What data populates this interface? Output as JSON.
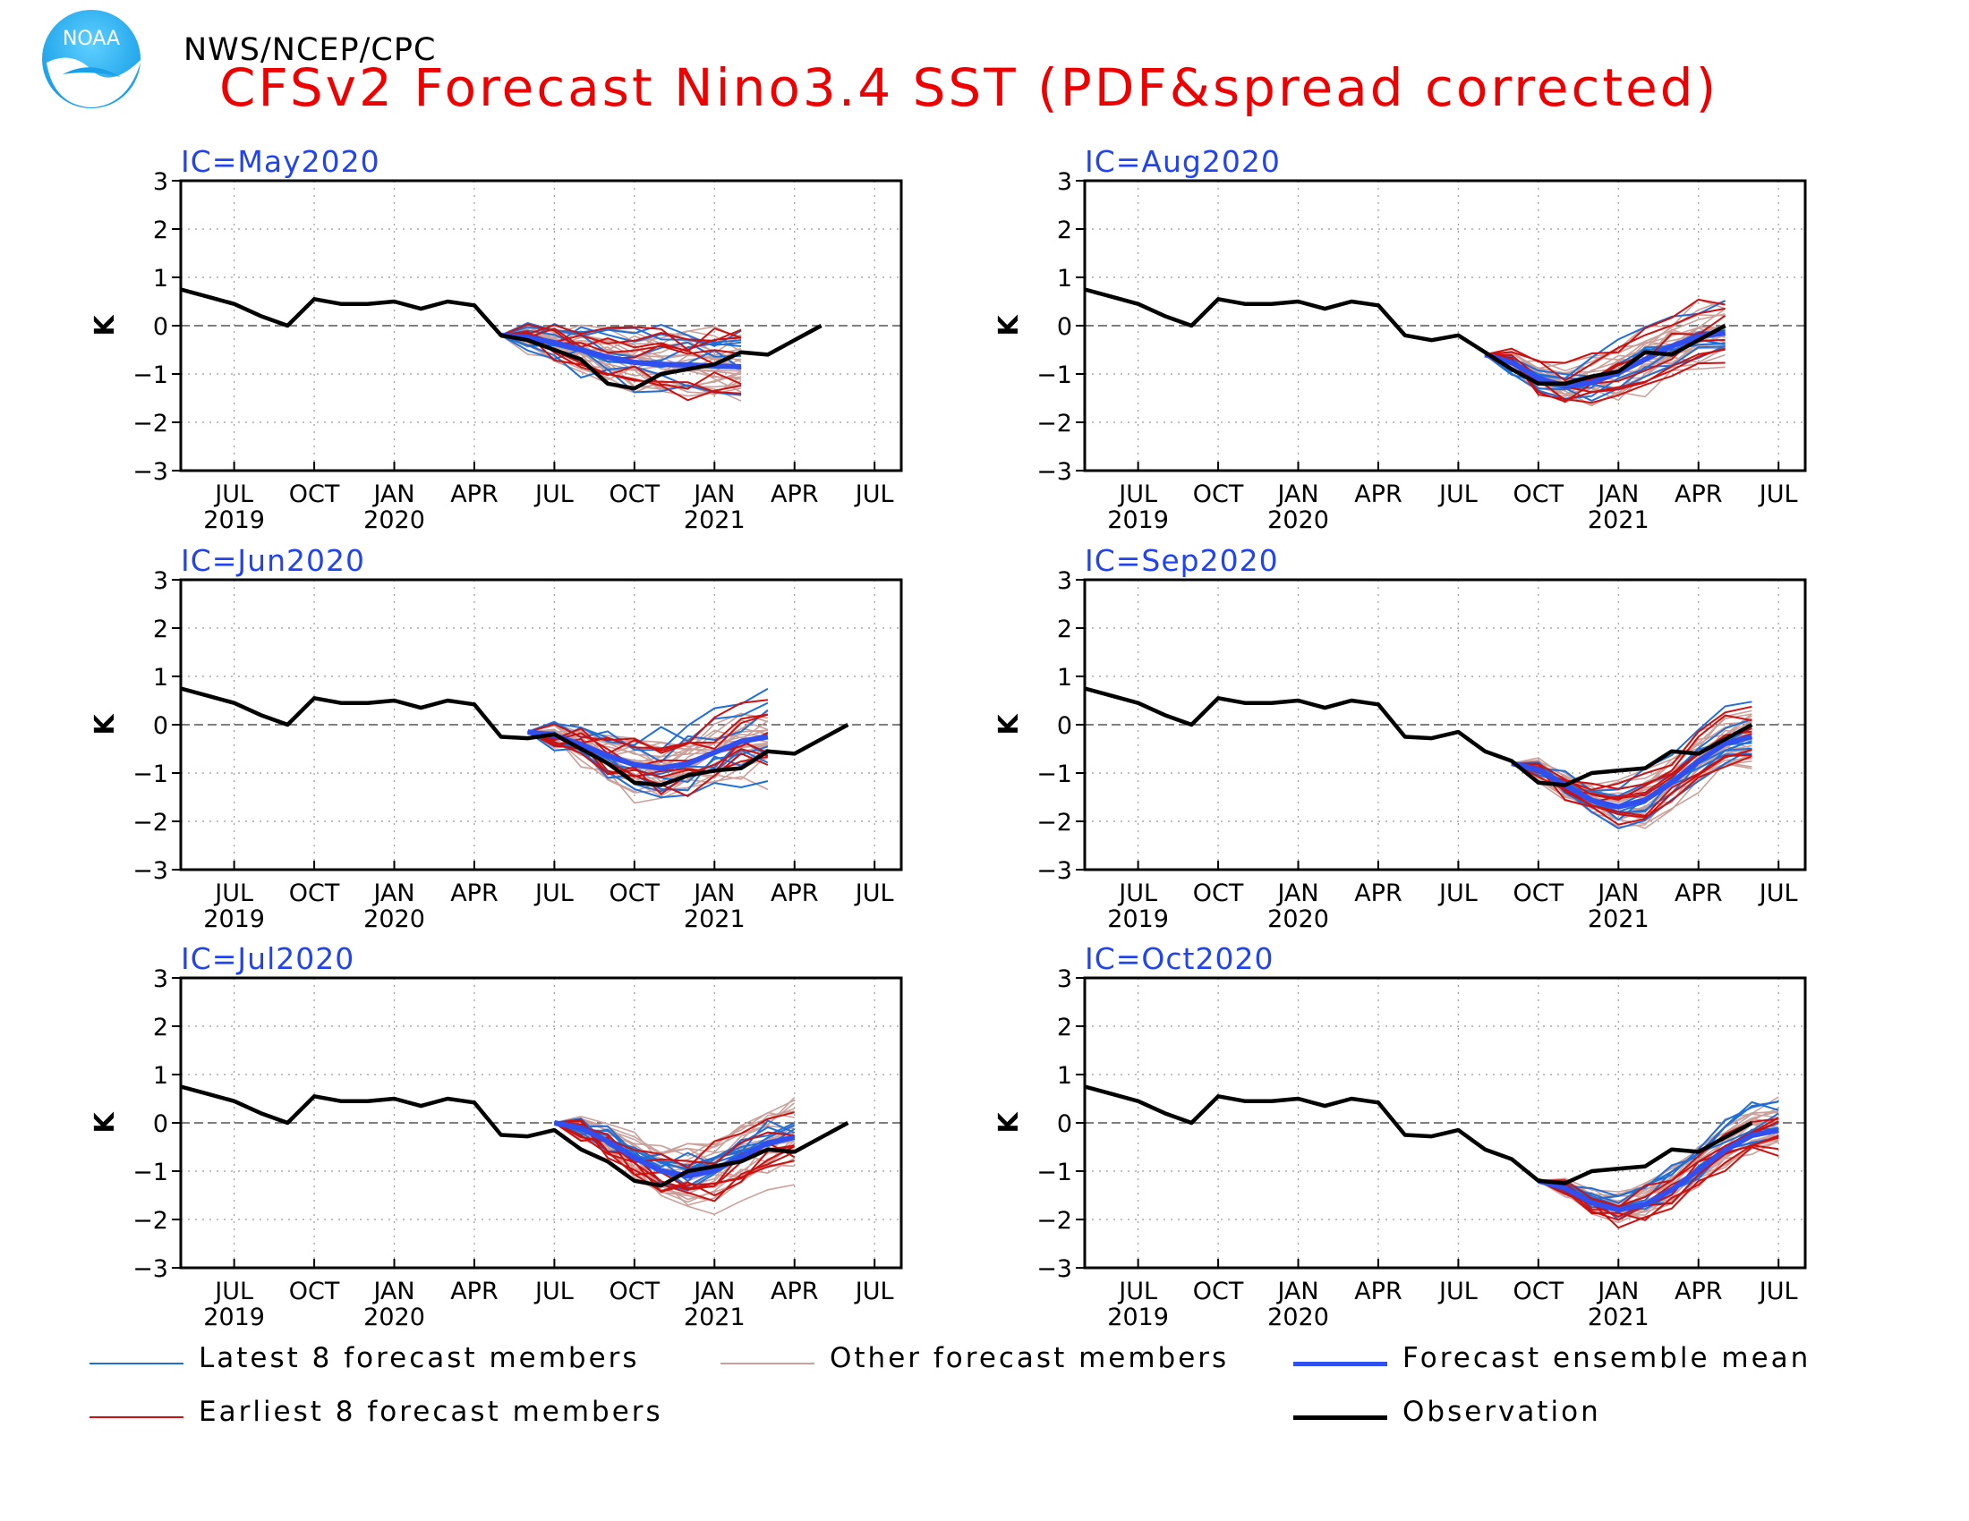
{
  "header": {
    "org": "NWS/NCEP/CPC",
    "title": "CFSv2 Forecast Nino3.4 SST (PDF&spread corrected)",
    "logo_text": "NOAA"
  },
  "colors": {
    "latest": "#1f6fd6",
    "earliest": "#cc1111",
    "other": "#caa09a",
    "mean": "#2f4ff0",
    "observation": "#000000",
    "panel_title": "#2244ee"
  },
  "legend": [
    {
      "label": "Latest 8 forecast members",
      "style": "latest"
    },
    {
      "label": "Other forecast members",
      "style": "other"
    },
    {
      "label": "Forecast ensemble mean",
      "style": "mean"
    },
    {
      "label": "Earliest 8 forecast members",
      "style": "earliest"
    },
    {
      "label": "Observation",
      "style": "observation"
    }
  ],
  "chart_data": [
    {
      "type": "line",
      "title": "IC=May2020",
      "ylabel": "K",
      "ylim": [
        -3,
        3
      ],
      "yticks": [
        "3",
        "2",
        "1",
        "0",
        "−1",
        "−2",
        "−3"
      ],
      "x_range": [
        "2019-05",
        "2021-08"
      ],
      "xticks": [
        {
          "month": "2019-07",
          "label": "JUL",
          "year": "2019"
        },
        {
          "month": "2019-10",
          "label": "OCT",
          "year": ""
        },
        {
          "month": "2020-01",
          "label": "JAN",
          "year": "2020"
        },
        {
          "month": "2020-04",
          "label": "APR",
          "year": ""
        },
        {
          "month": "2020-07",
          "label": "JUL",
          "year": ""
        },
        {
          "month": "2020-10",
          "label": "OCT",
          "year": ""
        },
        {
          "month": "2021-01",
          "label": "JAN",
          "year": "2021"
        },
        {
          "month": "2021-04",
          "label": "APR",
          "year": ""
        },
        {
          "month": "2021-07",
          "label": "JUL",
          "year": ""
        }
      ],
      "observation": {
        "start": "2019-05",
        "values": [
          0.75,
          0.6,
          0.45,
          0.2,
          0.0,
          0.55,
          0.45,
          0.45,
          0.5,
          0.35,
          0.5,
          0.42,
          -0.2,
          -0.3,
          -0.5,
          -0.7,
          -1.2,
          -1.3,
          -1.0,
          -0.9,
          -0.8,
          -0.55,
          -0.6,
          -0.3,
          0.0
        ]
      },
      "forecast": {
        "start": "2020-05",
        "months": 10,
        "start_value": -0.2,
        "mean_end": -0.85,
        "dip": -0.8,
        "dip_index": 6,
        "spread": 0.55
      }
    },
    {
      "type": "line",
      "title": "IC=Aug2020",
      "ylabel": "K",
      "ylim": [
        -3,
        3
      ],
      "yticks": [
        "3",
        "2",
        "1",
        "0",
        "−1",
        "−2",
        "−3"
      ],
      "x_range": [
        "2019-05",
        "2021-08"
      ],
      "xticks": [
        {
          "month": "2019-07",
          "label": "JUL",
          "year": "2019"
        },
        {
          "month": "2019-10",
          "label": "OCT",
          "year": ""
        },
        {
          "month": "2020-01",
          "label": "JAN",
          "year": "2020"
        },
        {
          "month": "2020-04",
          "label": "APR",
          "year": ""
        },
        {
          "month": "2020-07",
          "label": "JUL",
          "year": ""
        },
        {
          "month": "2020-10",
          "label": "OCT",
          "year": ""
        },
        {
          "month": "2021-01",
          "label": "JAN",
          "year": "2021"
        },
        {
          "month": "2021-04",
          "label": "APR",
          "year": ""
        },
        {
          "month": "2021-07",
          "label": "JUL",
          "year": ""
        }
      ],
      "observation": {
        "start": "2019-05",
        "values": [
          0.75,
          0.6,
          0.45,
          0.2,
          0.0,
          0.55,
          0.45,
          0.45,
          0.5,
          0.35,
          0.5,
          0.42,
          -0.2,
          -0.3,
          -0.2,
          -0.55,
          -0.9,
          -1.2,
          -1.2,
          -1.05,
          -0.95,
          -0.55,
          -0.6,
          -0.3,
          0.0
        ]
      },
      "forecast": {
        "start": "2020-08",
        "months": 10,
        "start_value": -0.6,
        "mean_end": -0.15,
        "dip": -1.25,
        "dip_index": 3,
        "spread": 0.45
      }
    },
    {
      "type": "line",
      "title": "IC=Jun2020",
      "ylabel": "K",
      "ylim": [
        -3,
        3
      ],
      "yticks": [
        "3",
        "2",
        "1",
        "0",
        "−1",
        "−2",
        "−3"
      ],
      "x_range": [
        "2019-05",
        "2021-08"
      ],
      "xticks": [
        {
          "month": "2019-07",
          "label": "JUL",
          "year": "2019"
        },
        {
          "month": "2019-10",
          "label": "OCT",
          "year": ""
        },
        {
          "month": "2020-01",
          "label": "JAN",
          "year": "2020"
        },
        {
          "month": "2020-04",
          "label": "APR",
          "year": ""
        },
        {
          "month": "2020-07",
          "label": "JUL",
          "year": ""
        },
        {
          "month": "2020-10",
          "label": "OCT",
          "year": ""
        },
        {
          "month": "2021-01",
          "label": "JAN",
          "year": "2021"
        },
        {
          "month": "2021-04",
          "label": "APR",
          "year": ""
        },
        {
          "month": "2021-07",
          "label": "JUL",
          "year": ""
        }
      ],
      "observation": {
        "start": "2019-05",
        "values": [
          0.75,
          0.6,
          0.45,
          0.2,
          0.0,
          0.55,
          0.45,
          0.45,
          0.5,
          0.35,
          0.5,
          0.42,
          -0.25,
          -0.28,
          -0.2,
          -0.5,
          -0.8,
          -1.2,
          -1.25,
          -1.05,
          -0.95,
          -0.9,
          -0.55,
          -0.6,
          -0.3,
          0.0
        ]
      },
      "forecast": {
        "start": "2020-06",
        "months": 10,
        "start_value": -0.15,
        "mean_end": -0.25,
        "dip": -0.9,
        "dip_index": 5,
        "spread": 0.55
      }
    },
    {
      "type": "line",
      "title": "IC=Sep2020",
      "ylabel": "K",
      "ylim": [
        -3,
        3
      ],
      "yticks": [
        "3",
        "2",
        "1",
        "0",
        "−1",
        "−2",
        "−3"
      ],
      "x_range": [
        "2019-05",
        "2021-08"
      ],
      "xticks": [
        {
          "month": "2019-07",
          "label": "JUL",
          "year": "2019"
        },
        {
          "month": "2019-10",
          "label": "OCT",
          "year": ""
        },
        {
          "month": "2020-01",
          "label": "JAN",
          "year": "2020"
        },
        {
          "month": "2020-04",
          "label": "APR",
          "year": ""
        },
        {
          "month": "2020-07",
          "label": "JUL",
          "year": ""
        },
        {
          "month": "2020-10",
          "label": "OCT",
          "year": ""
        },
        {
          "month": "2021-01",
          "label": "JAN",
          "year": "2021"
        },
        {
          "month": "2021-04",
          "label": "APR",
          "year": ""
        },
        {
          "month": "2021-07",
          "label": "JUL",
          "year": ""
        }
      ],
      "observation": {
        "start": "2019-05",
        "values": [
          0.75,
          0.6,
          0.45,
          0.2,
          0.0,
          0.55,
          0.45,
          0.45,
          0.5,
          0.35,
          0.5,
          0.42,
          -0.25,
          -0.28,
          -0.15,
          -0.55,
          -0.75,
          -1.2,
          -1.25,
          -1.0,
          -0.95,
          -0.9,
          -0.55,
          -0.6,
          -0.3,
          0.0
        ]
      },
      "forecast": {
        "start": "2020-09",
        "months": 10,
        "start_value": -0.8,
        "mean_end": -0.25,
        "dip": -1.7,
        "dip_index": 4,
        "spread": 0.4
      }
    },
    {
      "type": "line",
      "title": "IC=Jul2020",
      "ylabel": "K",
      "ylim": [
        -3,
        3
      ],
      "yticks": [
        "3",
        "2",
        "1",
        "0",
        "−1",
        "−2",
        "−3"
      ],
      "x_range": [
        "2019-05",
        "2021-08"
      ],
      "xticks": [
        {
          "month": "2019-07",
          "label": "JUL",
          "year": "2019"
        },
        {
          "month": "2019-10",
          "label": "OCT",
          "year": ""
        },
        {
          "month": "2020-01",
          "label": "JAN",
          "year": "2020"
        },
        {
          "month": "2020-04",
          "label": "APR",
          "year": ""
        },
        {
          "month": "2020-07",
          "label": "JUL",
          "year": ""
        },
        {
          "month": "2020-10",
          "label": "OCT",
          "year": ""
        },
        {
          "month": "2021-01",
          "label": "JAN",
          "year": "2021"
        },
        {
          "month": "2021-04",
          "label": "APR",
          "year": ""
        },
        {
          "month": "2021-07",
          "label": "JUL",
          "year": ""
        }
      ],
      "observation": {
        "start": "2019-05",
        "values": [
          0.75,
          0.6,
          0.45,
          0.2,
          0.0,
          0.55,
          0.45,
          0.45,
          0.5,
          0.35,
          0.5,
          0.42,
          -0.25,
          -0.28,
          -0.15,
          -0.55,
          -0.8,
          -1.2,
          -1.3,
          -1.0,
          -0.9,
          -0.8,
          -0.55,
          -0.6,
          -0.3,
          0.0
        ]
      },
      "forecast": {
        "start": "2020-07",
        "months": 10,
        "start_value": 0.0,
        "mean_end": -0.3,
        "dip": -1.1,
        "dip_index": 5,
        "spread": 0.5
      }
    },
    {
      "type": "line",
      "title": "IC=Oct2020",
      "ylabel": "K",
      "ylim": [
        -3,
        3
      ],
      "yticks": [
        "3",
        "2",
        "1",
        "0",
        "−1",
        "−2",
        "−3"
      ],
      "x_range": [
        "2019-05",
        "2021-08"
      ],
      "xticks": [
        {
          "month": "2019-07",
          "label": "JUL",
          "year": "2019"
        },
        {
          "month": "2019-10",
          "label": "OCT",
          "year": ""
        },
        {
          "month": "2020-01",
          "label": "JAN",
          "year": "2020"
        },
        {
          "month": "2020-04",
          "label": "APR",
          "year": ""
        },
        {
          "month": "2020-07",
          "label": "JUL",
          "year": ""
        },
        {
          "month": "2020-10",
          "label": "OCT",
          "year": ""
        },
        {
          "month": "2021-01",
          "label": "JAN",
          "year": "2021"
        },
        {
          "month": "2021-04",
          "label": "APR",
          "year": ""
        },
        {
          "month": "2021-07",
          "label": "JUL",
          "year": ""
        }
      ],
      "observation": {
        "start": "2019-05",
        "values": [
          0.75,
          0.6,
          0.45,
          0.2,
          0.0,
          0.55,
          0.45,
          0.45,
          0.5,
          0.35,
          0.5,
          0.42,
          -0.25,
          -0.28,
          -0.15,
          -0.55,
          -0.75,
          -1.2,
          -1.25,
          -1.0,
          -0.95,
          -0.9,
          -0.55,
          -0.6,
          -0.3,
          0.0
        ]
      },
      "forecast": {
        "start": "2020-10",
        "months": 10,
        "start_value": -1.2,
        "mean_end": -0.15,
        "dip": -1.8,
        "dip_index": 3,
        "spread": 0.35
      }
    }
  ]
}
